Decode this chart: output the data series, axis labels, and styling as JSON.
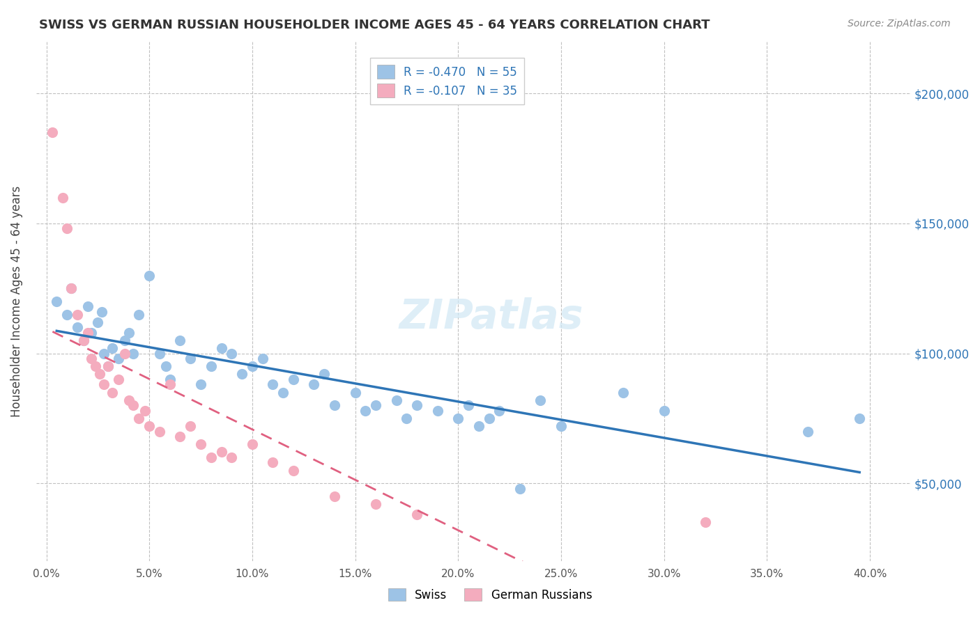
{
  "title": "SWISS VS GERMAN RUSSIAN HOUSEHOLDER INCOME AGES 45 - 64 YEARS CORRELATION CHART",
  "source": "Source: ZipAtlas.com",
  "ylabel": "Householder Income Ages 45 - 64 years",
  "xlabel_ticks": [
    "0.0%",
    "5.0%",
    "10.0%",
    "15.0%",
    "20.0%",
    "25.0%",
    "30.0%",
    "35.0%",
    "40.0%"
  ],
  "xlabel_vals": [
    0.0,
    0.05,
    0.1,
    0.15,
    0.2,
    0.25,
    0.3,
    0.35,
    0.4
  ],
  "ylabel_ticks": [
    "$50,000",
    "$100,000",
    "$150,000",
    "$200,000"
  ],
  "ylabel_vals": [
    50000,
    100000,
    150000,
    200000
  ],
  "xlim": [
    -0.005,
    0.42
  ],
  "ylim": [
    20000,
    220000
  ],
  "watermark": "ZIPatlas",
  "legend_swiss_R": "-0.470",
  "legend_swiss_N": "55",
  "legend_gr_R": "-0.107",
  "legend_gr_N": "35",
  "swiss_color": "#9DC3E6",
  "gr_color": "#F4ACBE",
  "swiss_line_color": "#2E75B6",
  "gr_line_color": "#E06080",
  "swiss_x": [
    0.005,
    0.01,
    0.012,
    0.015,
    0.018,
    0.02,
    0.022,
    0.025,
    0.027,
    0.028,
    0.03,
    0.032,
    0.035,
    0.038,
    0.04,
    0.042,
    0.045,
    0.05,
    0.055,
    0.058,
    0.06,
    0.065,
    0.07,
    0.075,
    0.08,
    0.085,
    0.09,
    0.095,
    0.1,
    0.105,
    0.11,
    0.115,
    0.12,
    0.13,
    0.135,
    0.14,
    0.15,
    0.155,
    0.16,
    0.17,
    0.175,
    0.18,
    0.19,
    0.2,
    0.205,
    0.21,
    0.215,
    0.22,
    0.23,
    0.24,
    0.25,
    0.28,
    0.3,
    0.37,
    0.395
  ],
  "swiss_y": [
    120000,
    115000,
    125000,
    110000,
    105000,
    118000,
    108000,
    112000,
    116000,
    100000,
    95000,
    102000,
    98000,
    105000,
    108000,
    100000,
    115000,
    130000,
    100000,
    95000,
    90000,
    105000,
    98000,
    88000,
    95000,
    102000,
    100000,
    92000,
    95000,
    98000,
    88000,
    85000,
    90000,
    88000,
    92000,
    80000,
    85000,
    78000,
    80000,
    82000,
    75000,
    80000,
    78000,
    75000,
    80000,
    72000,
    75000,
    78000,
    48000,
    82000,
    72000,
    85000,
    78000,
    70000,
    75000
  ],
  "gr_x": [
    0.003,
    0.008,
    0.01,
    0.012,
    0.015,
    0.018,
    0.02,
    0.022,
    0.024,
    0.026,
    0.028,
    0.03,
    0.032,
    0.035,
    0.038,
    0.04,
    0.042,
    0.045,
    0.048,
    0.05,
    0.055,
    0.06,
    0.065,
    0.07,
    0.075,
    0.08,
    0.085,
    0.09,
    0.1,
    0.11,
    0.12,
    0.14,
    0.16,
    0.18,
    0.32
  ],
  "gr_y": [
    185000,
    160000,
    148000,
    125000,
    115000,
    105000,
    108000,
    98000,
    95000,
    92000,
    88000,
    95000,
    85000,
    90000,
    100000,
    82000,
    80000,
    75000,
    78000,
    72000,
    70000,
    88000,
    68000,
    72000,
    65000,
    60000,
    62000,
    60000,
    65000,
    58000,
    55000,
    45000,
    42000,
    38000,
    35000
  ]
}
